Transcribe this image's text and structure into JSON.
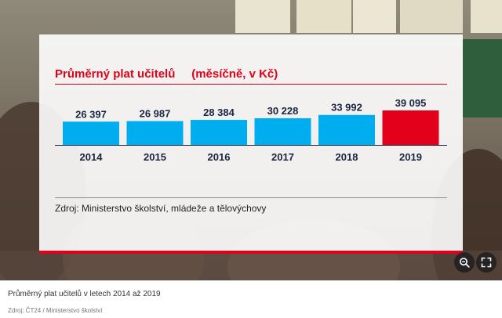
{
  "chart_data": {
    "type": "bar",
    "title": "Průměrný plat učitelů",
    "subtitle": "(měsíčně, v Kč)",
    "categories": [
      "2014",
      "2015",
      "2016",
      "2017",
      "2018",
      "2019"
    ],
    "values": [
      26397,
      26987,
      28384,
      30228,
      33992,
      39095
    ],
    "value_labels": [
      "26 397",
      "26 987",
      "28 384",
      "30 228",
      "33 992",
      "39 095"
    ],
    "bar_colors": [
      "#00aeef",
      "#00aeef",
      "#00aeef",
      "#00aeef",
      "#00aeef",
      "#e2001a"
    ],
    "ylim": [
      0,
      39095
    ],
    "grid": false,
    "legend": "none",
    "source": "Zdroj: Ministerstvo školství, mládeže a tělovýchovy"
  },
  "colors": {
    "accent": "#e2001a",
    "bar": "#00aeef",
    "highlight_bar": "#e2001a"
  },
  "controls": {
    "zoom_icon": "zoom-in-icon",
    "fullscreen_icon": "fullscreen-icon"
  },
  "figure": {
    "caption": "Průměrný plat učitelů v letech 2014 až 2019",
    "credit": "Zdroj: ČT24 / Ministerstvo školství"
  }
}
